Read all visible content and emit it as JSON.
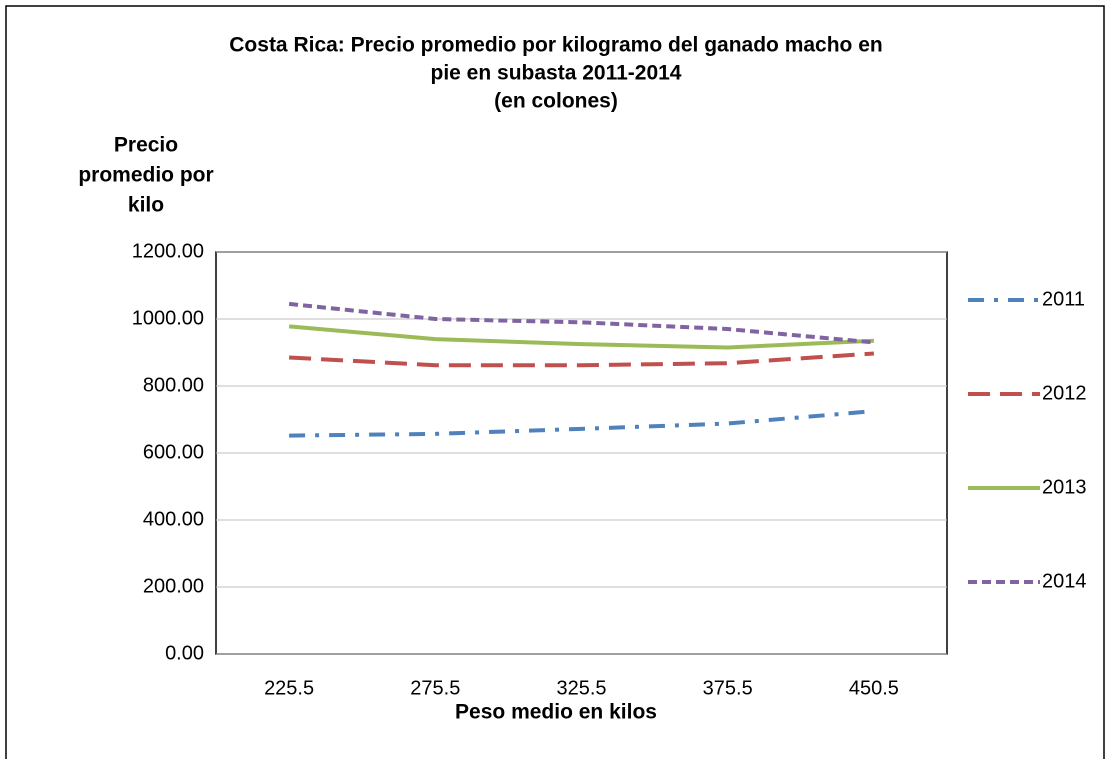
{
  "chart_data": {
    "type": "line",
    "title": [
      "Costa Rica: Precio promedio por kilogramo del ganado macho en",
      "pie en subasta 2011-2014",
      "(en colones)"
    ],
    "y_label": [
      "Precio",
      "promedio por",
      "kilo"
    ],
    "x_label": "Peso medio en kilos",
    "categories": [
      "225.5",
      "275.5",
      "325.5",
      "375.5",
      "450.5"
    ],
    "series": [
      {
        "name": "2011",
        "color": "#4f81bd",
        "dash": "dash-dot",
        "values": [
          652,
          657,
          672,
          688,
          725
        ]
      },
      {
        "name": "2012",
        "color": "#c0504d",
        "dash": "long-dash",
        "values": [
          885,
          862,
          862,
          868,
          897
        ]
      },
      {
        "name": "2013",
        "color": "#9bbb59",
        "dash": "solid",
        "values": [
          978,
          940,
          925,
          915,
          935
        ]
      },
      {
        "name": "2014",
        "color": "#8064a2",
        "dash": "short-dash",
        "values": [
          1045,
          1000,
          990,
          970,
          930
        ]
      }
    ],
    "ylim": [
      0,
      1200
    ],
    "yticks": [
      {
        "value": 0,
        "label": "0.00"
      },
      {
        "value": 200,
        "label": "200.00"
      },
      {
        "value": 400,
        "label": "400.00"
      },
      {
        "value": 600,
        "label": "600.00"
      },
      {
        "value": 800,
        "label": "800.00"
      },
      {
        "value": 1000,
        "label": "1000.00"
      },
      {
        "value": 1200,
        "label": "1200.00"
      }
    ],
    "grid": true,
    "legend": "right"
  }
}
